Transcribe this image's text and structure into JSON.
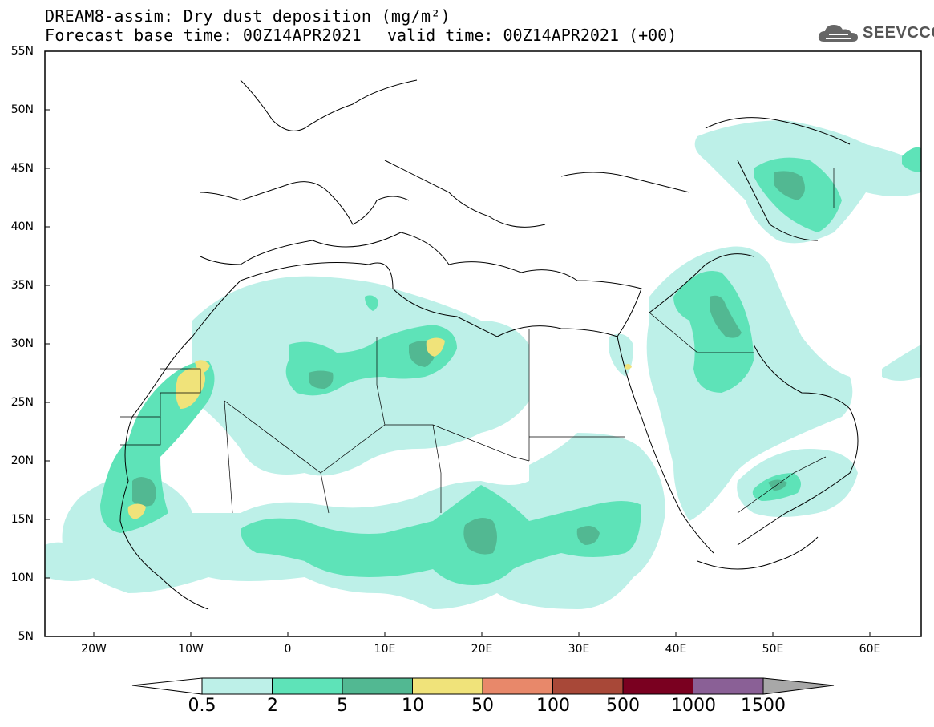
{
  "header": {
    "title": "DREAM8-assim: Dry dust deposition (mg/m²)",
    "forecast": "Forecast base time: 00Z14APR2021",
    "valid": "valid time: 00Z14APR2021 (+00)"
  },
  "logo": {
    "text": "SEEVCCC",
    "icon": "cloud-icon"
  },
  "axes": {
    "lat_labels": [
      "55N",
      "50N",
      "45N",
      "40N",
      "35N",
      "30N",
      "25N",
      "20N",
      "15N",
      "10N",
      "5N"
    ],
    "lon_labels": [
      "20W",
      "10W",
      "0",
      "10E",
      "20E",
      "30E",
      "40E",
      "50E",
      "60E"
    ]
  },
  "legend": {
    "levels": [
      "0.5",
      "2",
      "5",
      "10",
      "50",
      "100",
      "500",
      "1000",
      "1500"
    ],
    "colors": [
      "#bdf0e8",
      "#5ee3b8",
      "#52b892",
      "#f0e37a",
      "#e8886a",
      "#a84838",
      "#7a0020",
      "#8a6096",
      "#a8a8a8"
    ]
  },
  "chart_data": {
    "type": "heatmap",
    "title": "DREAM8-assim: Dry dust deposition (mg/m²)",
    "variable": "dry dust deposition",
    "units": "mg/m²",
    "lon_range": [
      -25,
      65
    ],
    "lat_range": [
      5,
      55
    ],
    "levels": [
      0.5,
      2,
      5,
      10,
      50,
      100,
      500,
      1000,
      1500
    ],
    "colors": [
      "#bdf0e8",
      "#5ee3b8",
      "#52b892",
      "#f0e37a",
      "#e8886a",
      "#a84838",
      "#7a0020",
      "#8a6096",
      "#a8a8a8"
    ]
  }
}
